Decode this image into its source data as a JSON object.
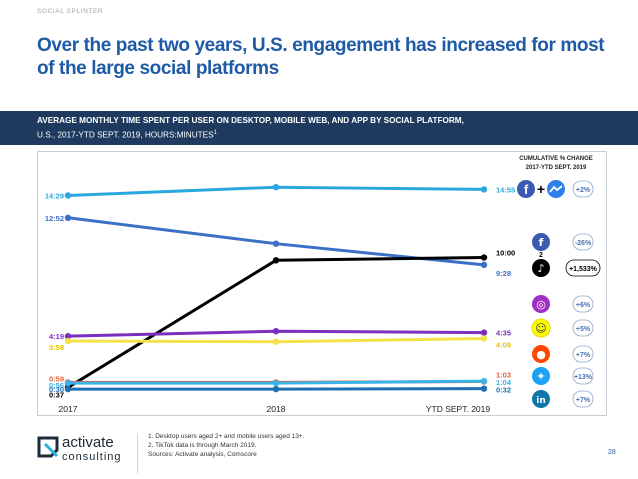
{
  "header": {
    "top_label": "SOCIAL SPLINTER",
    "headline": "Over the past two years, U.S. engagement has increased for most of the large social platforms"
  },
  "banner": {
    "line1": "AVERAGE MONTHLY TIME SPENT PER USER ON DESKTOP, MOBILE WEB, AND APP BY SOCIAL PLATFORM,",
    "line2": "U.S., 2017-YTD SEPT. 2019, HOURS:MINUTES",
    "footnote_mark": "1"
  },
  "chart_data": {
    "type": "line",
    "categories": [
      "2017",
      "2018",
      "YTD SEPT. 2019"
    ],
    "legend_title": "CUMULATIVE % CHANGE\n2017-YTD SEPT. 2019",
    "series": [
      {
        "icon": "facebook-messenger-icon",
        "color": "#29a8e0",
        "values": [
          14.48,
          15.08,
          14.92
        ],
        "start_label": "14:29",
        "end_label": "14:55",
        "change": "+2%",
        "platforms": [
          "Facebook",
          "Messenger"
        ]
      },
      {
        "icon": "facebook-icon",
        "color": "#3b70c8",
        "values": [
          12.87,
          11.0,
          9.47
        ],
        "start_label": "12:52",
        "end_label": "9:28",
        "change": "-26%"
      },
      {
        "icon": "tiktok-icon",
        "color": "#000000",
        "values": [
          0.62,
          9.8,
          10.0
        ],
        "start_label": "0:37",
        "end_label": "10:00",
        "change": "+1,533%",
        "footnote": "2"
      },
      {
        "icon": "instagram-icon",
        "color": "#7b2fbe",
        "values": [
          4.32,
          4.68,
          4.58
        ],
        "start_label": "4:19",
        "end_label": "4:35",
        "change": "+6%"
      },
      {
        "icon": "snapchat-icon",
        "color": "#f5e14a",
        "values": [
          3.97,
          3.92,
          4.15
        ],
        "start_label": "3:58",
        "end_label": "4:09",
        "change": "+5%"
      },
      {
        "icon": "reddit-icon",
        "color": "#e8603c",
        "values": [
          0.98,
          0.98,
          1.05
        ],
        "start_label": "0:59",
        "end_label": "1:03",
        "change": "+7%"
      },
      {
        "icon": "twitter-icon",
        "color": "#39b3e8",
        "values": [
          0.93,
          0.93,
          1.07
        ],
        "start_label": "0:56",
        "end_label": "1:04",
        "change": "+13%"
      },
      {
        "icon": "linkedin-icon",
        "color": "#1f6fb2",
        "values": [
          0.5,
          0.5,
          0.53
        ],
        "start_label": "0:30",
        "end_label": "0:32",
        "change": "+7%"
      }
    ]
  },
  "footnotes": [
    "1. Desktop users aged 2+ and mobile users aged 13+.",
    "2. TikTok data is through March 2019.",
    "Sources: Activate analysis, Comscore"
  ],
  "logo": {
    "name": "activate",
    "sub": "consulting"
  },
  "page_number": "28"
}
